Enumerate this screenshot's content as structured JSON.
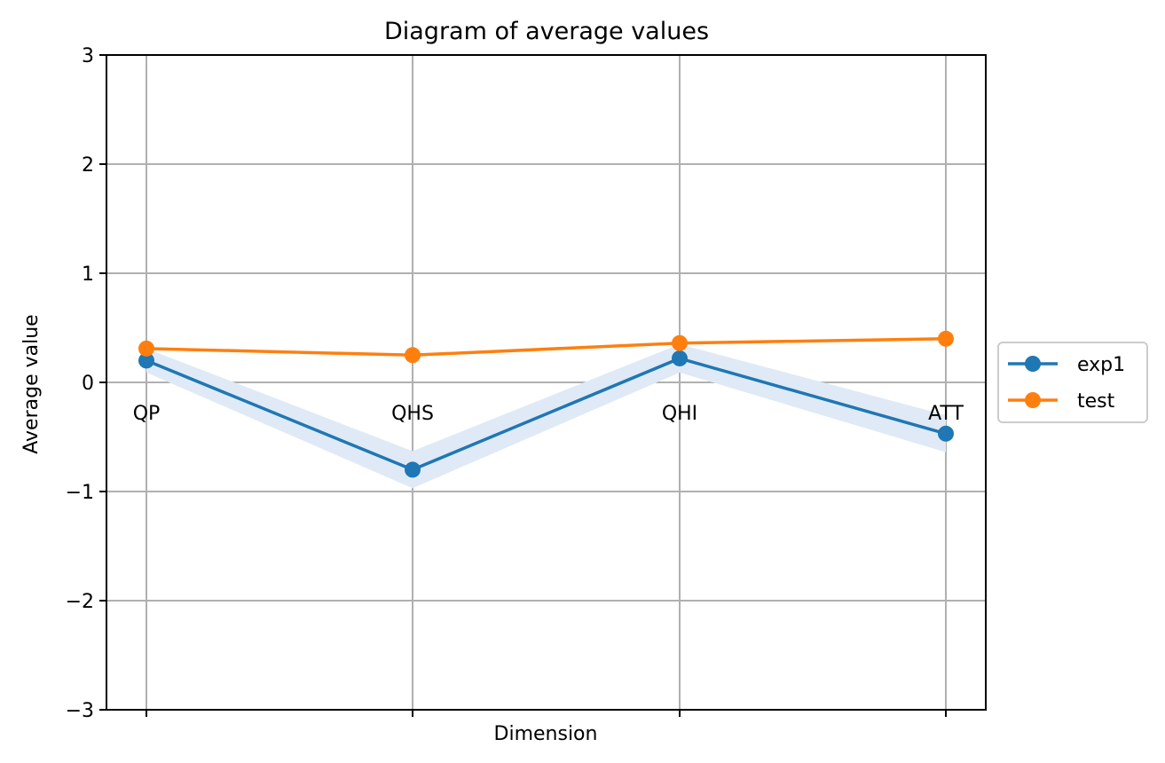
{
  "chart_data": {
    "type": "line",
    "title": "Diagram of average values",
    "xlabel": "Dimension",
    "ylabel": "Average value",
    "categories": [
      "QP",
      "QHS",
      "QHI",
      "ATT"
    ],
    "ylim": [
      -3,
      3
    ],
    "yticks": [
      -3,
      -2,
      -1,
      0,
      1,
      2,
      3
    ],
    "ytick_labels": [
      "−3",
      "−2",
      "−1",
      "0",
      "1",
      "2",
      "3"
    ],
    "grid": true,
    "legend_position": "center-right-outside",
    "series": [
      {
        "name": "exp1",
        "color": "#1f77b4",
        "values": [
          0.2,
          -0.8,
          0.22,
          -0.47
        ],
        "band_lower": [
          0.09,
          -0.97,
          0.09,
          -0.64
        ],
        "band_upper": [
          0.31,
          -0.63,
          0.35,
          -0.3
        ],
        "band_color": "#dfeaf6"
      },
      {
        "name": "test",
        "color": "#ff7f0e",
        "values": [
          0.31,
          0.25,
          0.36,
          0.4
        ]
      }
    ]
  }
}
